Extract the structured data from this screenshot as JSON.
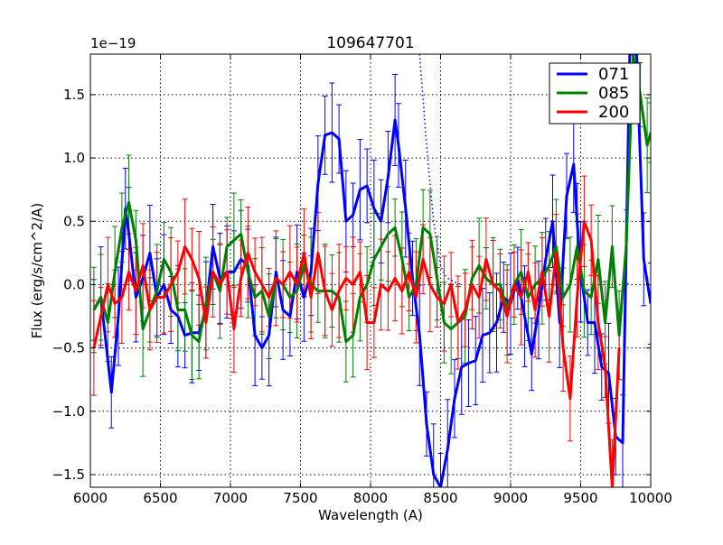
{
  "chart_data": {
    "type": "line",
    "title": "109647701",
    "xlabel": "Wavelength (A)",
    "ylabel": "Flux (erg/s/cm^2/A)",
    "y_offset_label": "1e−19",
    "xlim": [
      6000,
      10000
    ],
    "ylim": [
      -1.6,
      1.82
    ],
    "xticks": [
      6000,
      6500,
      7000,
      7500,
      8000,
      8500,
      9000,
      9500,
      10000
    ],
    "xtick_labels": [
      "6000",
      "6500",
      "7000",
      "7500",
      "8000",
      "8500",
      "9000",
      "9500",
      "10000"
    ],
    "yticks": [
      -1.5,
      -1.0,
      -0.5,
      0.0,
      0.5,
      1.0,
      1.5
    ],
    "ytick_labels": [
      "−1.5",
      "−1.0",
      "−0.5",
      "0.0",
      "0.5",
      "1.0",
      "1.5"
    ],
    "grid": true,
    "legend_position": "top-right",
    "dotted_overlay": {
      "x": [
        8350,
        8400,
        8450,
        8500,
        8520,
        8550,
        8600,
        8650
      ],
      "y": [
        1.82,
        1.1,
        0.5,
        0.15,
        0.1,
        0.05,
        0.02,
        0.0
      ]
    },
    "series": [
      {
        "name": "071",
        "color": "#0000ff",
        "x": [
          6025,
          6075,
          6150,
          6200,
          6250,
          6275,
          6325,
          6375,
          6425,
          6475,
          6525,
          6575,
          6625,
          6675,
          6725,
          6775,
          6825,
          6875,
          6925,
          6975,
          7025,
          7075,
          7125,
          7175,
          7225,
          7275,
          7325,
          7375,
          7425,
          7475,
          7525,
          7575,
          7625,
          7675,
          7725,
          7775,
          7825,
          7875,
          7925,
          7975,
          8025,
          8075,
          8125,
          8175,
          8200,
          8250,
          8300,
          8350,
          8400,
          8450,
          8500,
          8550,
          8600,
          8650,
          8700,
          8750,
          8800,
          8850,
          8900,
          8950,
          9000,
          9050,
          9100,
          9150,
          9200,
          9250,
          9300,
          9350,
          9400,
          9450,
          9475,
          9500,
          9550,
          9600,
          9650,
          9700,
          9750,
          9800,
          9850,
          9900,
          9950,
          10000
        ],
        "y": [
          -0.2,
          -0.1,
          -0.85,
          -0.25,
          0.6,
          0.4,
          -0.1,
          0.05,
          0.25,
          -0.1,
          0.0,
          -0.2,
          -0.25,
          -0.4,
          -0.38,
          -0.38,
          -0.2,
          0.3,
          0.05,
          0.1,
          0.1,
          0.2,
          0.15,
          -0.4,
          -0.5,
          -0.4,
          0.1,
          -0.2,
          -0.25,
          0.1,
          -0.1,
          0.1,
          0.8,
          1.18,
          1.2,
          1.15,
          0.5,
          0.55,
          0.75,
          0.78,
          0.6,
          0.5,
          0.85,
          1.3,
          1.1,
          0.6,
          0.05,
          -0.4,
          -1.1,
          -1.5,
          -1.6,
          -1.3,
          -0.9,
          -0.65,
          -0.62,
          -0.6,
          -0.4,
          -0.38,
          -0.3,
          -0.1,
          -0.15,
          0.05,
          -0.25,
          -0.55,
          -0.2,
          0.2,
          0.5,
          -0.3,
          0.7,
          0.95,
          0.5,
          0.1,
          -0.3,
          -0.3,
          -0.65,
          -0.7,
          -1.2,
          -1.25,
          1.82,
          1.82,
          0.2,
          -0.15
        ]
      },
      {
        "name": "085",
        "color": "#008000",
        "x": [
          6025,
          6075,
          6125,
          6175,
          6225,
          6275,
          6325,
          6375,
          6425,
          6475,
          6525,
          6575,
          6625,
          6675,
          6725,
          6775,
          6825,
          6875,
          6925,
          6975,
          7025,
          7075,
          7125,
          7175,
          7225,
          7275,
          7325,
          7375,
          7425,
          7475,
          7525,
          7575,
          7625,
          7675,
          7725,
          7775,
          7825,
          7875,
          7925,
          7975,
          8025,
          8075,
          8125,
          8175,
          8225,
          8275,
          8325,
          8375,
          8425,
          8475,
          8525,
          8575,
          8625,
          8675,
          8725,
          8775,
          8825,
          8875,
          8925,
          8975,
          9025,
          9075,
          9125,
          9175,
          9225,
          9275,
          9325,
          9375,
          9425,
          9475,
          9525,
          9575,
          9625,
          9675,
          9725,
          9775,
          9825,
          9875,
          9925,
          9975,
          10000
        ],
        "y": [
          -0.2,
          -0.1,
          -0.3,
          0.1,
          0.45,
          0.65,
          0.35,
          -0.35,
          -0.2,
          -0.05,
          0.2,
          0.1,
          -0.2,
          -0.2,
          -0.4,
          -0.45,
          -0.15,
          0.1,
          -0.05,
          0.3,
          0.35,
          0.4,
          0.1,
          -0.1,
          -0.05,
          -0.25,
          0.05,
          0.0,
          -0.1,
          -0.05,
          0.15,
          0.0,
          -0.05,
          -0.05,
          -0.05,
          -0.1,
          -0.45,
          -0.4,
          -0.1,
          0.0,
          0.2,
          0.3,
          0.4,
          0.45,
          0.2,
          -0.1,
          0.0,
          0.45,
          0.4,
          0.05,
          -0.3,
          -0.35,
          -0.3,
          -0.25,
          0.05,
          0.15,
          0.05,
          0.0,
          0.0,
          -0.2,
          0.0,
          0.1,
          -0.1,
          0.0,
          0.05,
          0.15,
          0.3,
          -0.1,
          0.0,
          0.3,
          -0.05,
          -0.1,
          0.2,
          -0.3,
          0.3,
          -0.4,
          0.3,
          1.82,
          1.5,
          1.1,
          1.2
        ]
      },
      {
        "name": "200",
        "color": "#ff0000",
        "x": [
          6025,
          6075,
          6125,
          6175,
          6225,
          6275,
          6325,
          6375,
          6425,
          6475,
          6525,
          6575,
          6625,
          6675,
          6725,
          6775,
          6825,
          6875,
          6925,
          6975,
          7025,
          7075,
          7125,
          7175,
          7225,
          7275,
          7325,
          7375,
          7425,
          7475,
          7525,
          7575,
          7625,
          7675,
          7725,
          7775,
          7825,
          7875,
          7925,
          7975,
          8025,
          8075,
          8125,
          8175,
          8225,
          8275,
          8325,
          8375,
          8425,
          8475,
          8525,
          8575,
          8625,
          8675,
          8725,
          8775,
          8825,
          8875,
          8925,
          8975,
          9025,
          9075,
          9125,
          9175,
          9225,
          9275,
          9325,
          9375,
          9425,
          9475,
          9525,
          9575,
          9625,
          9675,
          9725,
          9775
        ],
        "y": [
          -0.5,
          -0.25,
          0.0,
          -0.15,
          -0.1,
          0.1,
          -0.05,
          0.15,
          -0.2,
          -0.1,
          -0.1,
          0.0,
          0.1,
          0.3,
          0.2,
          0.05,
          -0.3,
          0.1,
          0.0,
          0.1,
          -0.35,
          0.05,
          0.25,
          0.1,
          0.0,
          -0.1,
          0.05,
          0.0,
          0.1,
          0.0,
          0.25,
          -0.1,
          0.25,
          -0.05,
          -0.2,
          -0.05,
          0.05,
          0.0,
          0.1,
          -0.3,
          -0.3,
          0.0,
          -0.05,
          0.05,
          -0.05,
          0.1,
          -0.1,
          0.2,
          0.0,
          -0.1,
          -0.15,
          0.0,
          -0.3,
          -0.2,
          0.0,
          -0.1,
          0.2,
          0.0,
          -0.05,
          -0.25,
          0.0,
          -0.1,
          0.1,
          -0.2,
          0.1,
          -0.25,
          0.25,
          -0.5,
          -0.9,
          -0.1,
          0.5,
          0.35,
          -0.3,
          -0.65,
          -1.6,
          -0.5
        ]
      }
    ]
  }
}
